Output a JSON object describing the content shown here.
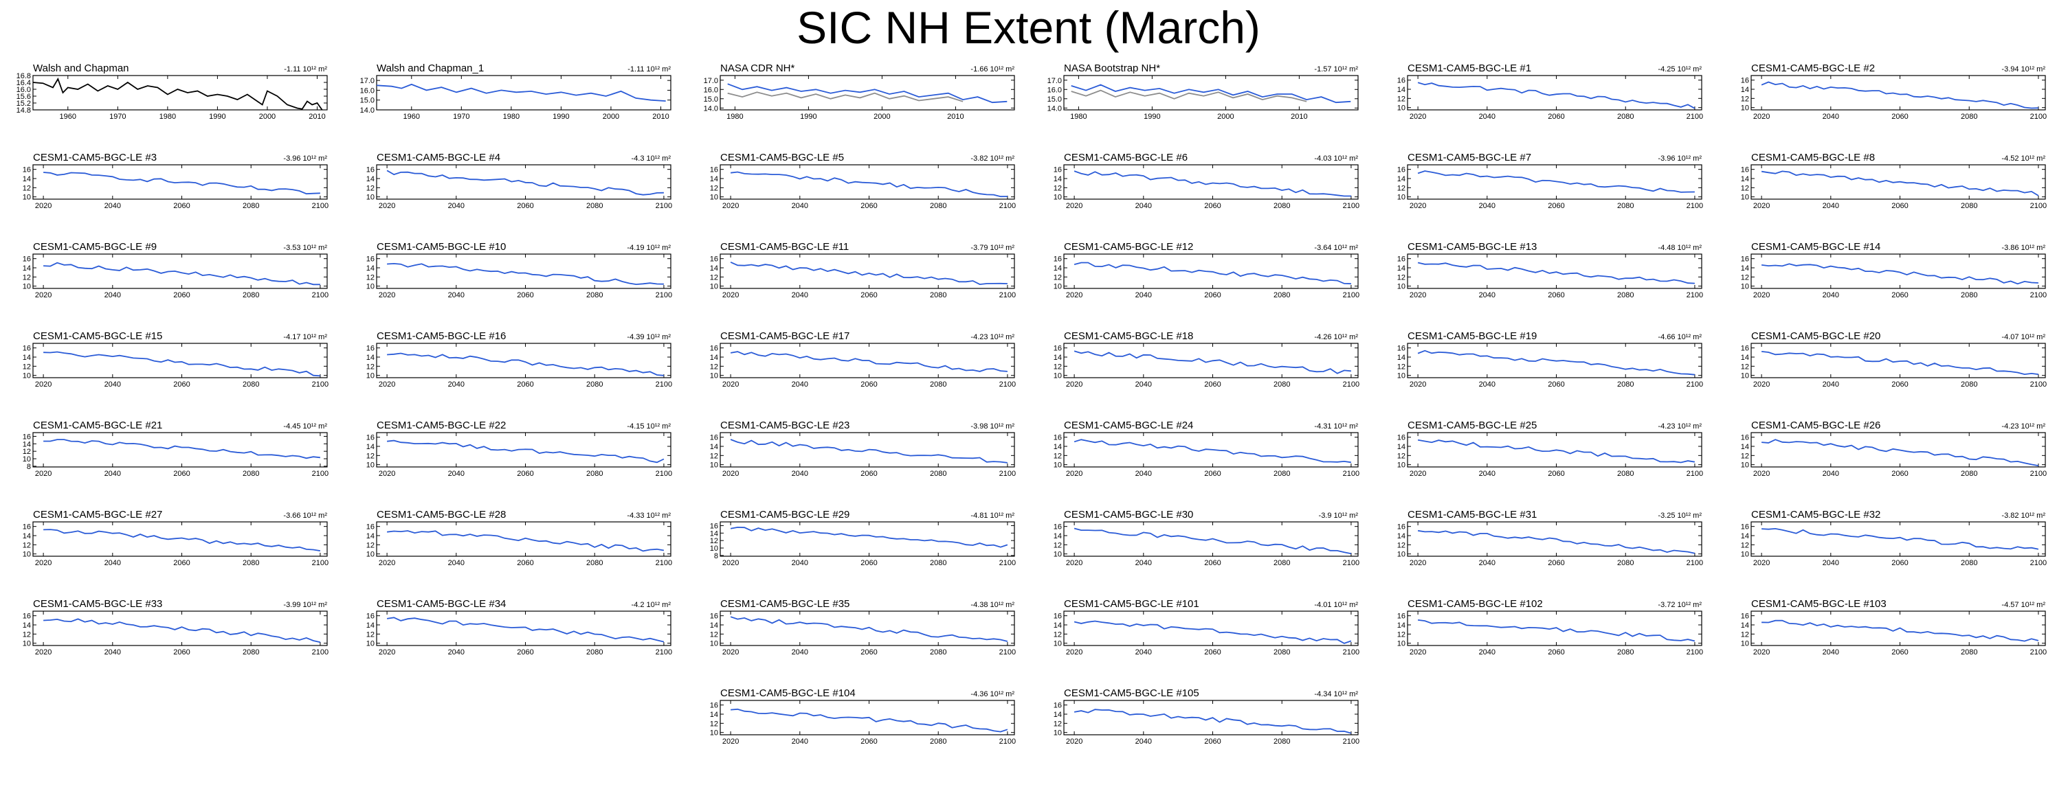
{
  "title": "SIC NH Extent (March)",
  "colors": {
    "observed": "#000000",
    "model": "#2a5bd7",
    "overlay": "#8c8c8c"
  },
  "chart_data": [
    {
      "type": "line",
      "title": "Walsh and Chapman",
      "trend": "-1.11",
      "trend_unit": "10¹² m²",
      "xlim": [
        1953,
        2012
      ],
      "ylim": [
        14.8,
        16.8
      ],
      "yticks": [
        "14.8",
        "15.2",
        "15.6",
        "16.0",
        "16.4",
        "16.8"
      ],
      "xticks": [
        "1960",
        "1970",
        "1980",
        "1990",
        "2000",
        "2010"
      ],
      "color": "#000000",
      "series": [
        {
          "x": [
            1953,
            1955,
            1957,
            1958,
            1959,
            1960,
            1962,
            1964,
            1966,
            1968,
            1970,
            1972,
            1974,
            1976,
            1978,
            1980,
            1982,
            1984,
            1986,
            1988,
            1990,
            1992,
            1994,
            1996,
            1998,
            1999,
            2000,
            2002,
            2004,
            2006,
            2007,
            2008,
            2009,
            2010,
            2011
          ],
          "y": [
            16.4,
            16.35,
            16.1,
            16.6,
            15.8,
            16.1,
            16.0,
            16.3,
            15.9,
            16.2,
            16.0,
            16.4,
            16.0,
            16.2,
            16.1,
            15.7,
            16.0,
            15.8,
            15.9,
            15.6,
            15.7,
            15.6,
            15.4,
            15.7,
            15.3,
            15.1,
            15.9,
            15.6,
            15.1,
            14.9,
            14.85,
            15.3,
            15.1,
            15.2,
            14.8
          ]
        }
      ]
    },
    {
      "type": "line",
      "title": "Walsh and Chapman_1",
      "trend": "-1.11",
      "trend_unit": "10¹² m²",
      "xlim": [
        1953,
        2012
      ],
      "ylim": [
        14,
        17.5
      ],
      "yticks": [
        "14.0",
        "15.0",
        "16.0",
        "17.0"
      ],
      "xticks": [
        "1960",
        "1970",
        "1980",
        "1990",
        "2000",
        "2010"
      ],
      "color": "#2a5bd7",
      "series": [
        {
          "x": [
            1953,
            1956,
            1958,
            1960,
            1963,
            1966,
            1969,
            1972,
            1975,
            1978,
            1981,
            1984,
            1987,
            1990,
            1993,
            1996,
            1999,
            2002,
            2005,
            2008,
            2011
          ],
          "y": [
            16.5,
            16.4,
            16.2,
            16.6,
            16.0,
            16.3,
            15.8,
            16.2,
            15.7,
            16.0,
            15.8,
            15.9,
            15.6,
            15.8,
            15.5,
            15.7,
            15.4,
            15.9,
            15.2,
            15.0,
            14.9
          ]
        }
      ]
    },
    {
      "type": "line",
      "title": "NASA CDR NH*",
      "trend": "-1.66",
      "trend_unit": "10¹² m²",
      "xlim": [
        1978,
        2018
      ],
      "ylim": [
        13.8,
        17.5
      ],
      "yticks": [
        "14.0",
        "15.0",
        "16.0",
        "17.0"
      ],
      "xticks": [
        "1980",
        "1990",
        "2000",
        "2010"
      ],
      "color": "#2a5bd7",
      "series": [
        {
          "x": [
            1979,
            1981,
            1983,
            1985,
            1987,
            1989,
            1991,
            1993,
            1995,
            1997,
            1999,
            2001,
            2003,
            2005,
            2007,
            2009,
            2011,
            2013,
            2015,
            2017
          ],
          "y": [
            16.6,
            16.0,
            16.3,
            15.9,
            16.2,
            15.8,
            16.0,
            15.6,
            15.9,
            15.7,
            16.0,
            15.5,
            15.8,
            15.2,
            15.4,
            15.6,
            14.9,
            15.2,
            14.6,
            14.7
          ]
        },
        {
          "x": [
            1979,
            1981,
            1983,
            1985,
            1987,
            1989,
            1991,
            1993,
            1995,
            1997,
            1999,
            2001,
            2003,
            2005,
            2007,
            2009,
            2011
          ],
          "y": [
            15.6,
            15.2,
            15.7,
            15.3,
            15.6,
            15.1,
            15.5,
            15.0,
            15.4,
            15.1,
            15.6,
            15.0,
            15.3,
            14.8,
            15.0,
            15.2,
            14.7
          ]
        }
      ]
    },
    {
      "type": "line",
      "title": "NASA Bootstrap NH*",
      "trend": "-1.57",
      "trend_unit": "10¹² m²",
      "xlim": [
        1978,
        2018
      ],
      "ylim": [
        13.8,
        17.5
      ],
      "yticks": [
        "14.0",
        "15.0",
        "16.0",
        "17.0"
      ],
      "xticks": [
        "1980",
        "1990",
        "2000",
        "2010"
      ],
      "color": "#2a5bd7",
      "series": [
        {
          "x": [
            1979,
            1981,
            1983,
            1985,
            1987,
            1989,
            1991,
            1993,
            1995,
            1997,
            1999,
            2001,
            2003,
            2005,
            2007,
            2009,
            2011,
            2013,
            2015,
            2017
          ],
          "y": [
            16.4,
            15.9,
            16.5,
            15.8,
            16.2,
            15.9,
            16.1,
            15.6,
            16.0,
            15.7,
            16.0,
            15.4,
            15.8,
            15.2,
            15.5,
            15.5,
            14.9,
            15.2,
            14.6,
            14.7
          ]
        },
        {
          "x": [
            1979,
            1981,
            1983,
            1985,
            1987,
            1989,
            1991,
            1993,
            1995,
            1997,
            1999,
            2001,
            2003,
            2005,
            2007,
            2009,
            2011
          ],
          "y": [
            15.8,
            15.3,
            15.9,
            15.2,
            15.7,
            15.3,
            15.6,
            15.0,
            15.6,
            15.3,
            15.7,
            15.1,
            15.5,
            14.9,
            15.3,
            15.1,
            14.7
          ]
        }
      ]
    }
  ],
  "ensemble": {
    "xlim": [
      2017,
      2102
    ],
    "xticks": [
      "2020",
      "2040",
      "2060",
      "2080",
      "2100"
    ],
    "yticks_default": [
      "10",
      "12",
      "14",
      "16"
    ],
    "yticks_wide": [
      "8",
      "10",
      "12",
      "14",
      "16"
    ],
    "trend_unit": "10¹² m²",
    "members": [
      {
        "title": "CESM1-CAM5-BGC-LE #1",
        "trend": "-4.25"
      },
      {
        "title": "CESM1-CAM5-BGC-LE #2",
        "trend": "-3.94"
      },
      {
        "title": "CESM1-CAM5-BGC-LE #3",
        "trend": "-3.96"
      },
      {
        "title": "CESM1-CAM5-BGC-LE #4",
        "trend": "-4.3"
      },
      {
        "title": "CESM1-CAM5-BGC-LE #5",
        "trend": "-3.82"
      },
      {
        "title": "CESM1-CAM5-BGC-LE #6",
        "trend": "-4.03"
      },
      {
        "title": "CESM1-CAM5-BGC-LE #7",
        "trend": "-3.96"
      },
      {
        "title": "CESM1-CAM5-BGC-LE #8",
        "trend": "-4.52"
      },
      {
        "title": "CESM1-CAM5-BGC-LE #9",
        "trend": "-3.53"
      },
      {
        "title": "CESM1-CAM5-BGC-LE #10",
        "trend": "-4.19"
      },
      {
        "title": "CESM1-CAM5-BGC-LE #11",
        "trend": "-3.79"
      },
      {
        "title": "CESM1-CAM5-BGC-LE #12",
        "trend": "-3.64"
      },
      {
        "title": "CESM1-CAM5-BGC-LE #13",
        "trend": "-4.48"
      },
      {
        "title": "CESM1-CAM5-BGC-LE #14",
        "trend": "-3.86"
      },
      {
        "title": "CESM1-CAM5-BGC-LE #15",
        "trend": "-4.17"
      },
      {
        "title": "CESM1-CAM5-BGC-LE #16",
        "trend": "-4.39"
      },
      {
        "title": "CESM1-CAM5-BGC-LE #17",
        "trend": "-4.23"
      },
      {
        "title": "CESM1-CAM5-BGC-LE #18",
        "trend": "-4.26"
      },
      {
        "title": "CESM1-CAM5-BGC-LE #19",
        "trend": "-4.66"
      },
      {
        "title": "CESM1-CAM5-BGC-LE #20",
        "trend": "-4.07"
      },
      {
        "title": "CESM1-CAM5-BGC-LE #21",
        "trend": "-4.45",
        "wide": true
      },
      {
        "title": "CESM1-CAM5-BGC-LE #22",
        "trend": "-4.15"
      },
      {
        "title": "CESM1-CAM5-BGC-LE #23",
        "trend": "-3.98"
      },
      {
        "title": "CESM1-CAM5-BGC-LE #24",
        "trend": "-4.31"
      },
      {
        "title": "CESM1-CAM5-BGC-LE #25",
        "trend": "-4.23"
      },
      {
        "title": "CESM1-CAM5-BGC-LE #26",
        "trend": "-4.23"
      },
      {
        "title": "CESM1-CAM5-BGC-LE #27",
        "trend": "-3.66"
      },
      {
        "title": "CESM1-CAM5-BGC-LE #28",
        "trend": "-4.33"
      },
      {
        "title": "CESM1-CAM5-BGC-LE #29",
        "trend": "-4.81",
        "wide": true
      },
      {
        "title": "CESM1-CAM5-BGC-LE #30",
        "trend": "-3.9"
      },
      {
        "title": "CESM1-CAM5-BGC-LE #31",
        "trend": "-3.25"
      },
      {
        "title": "CESM1-CAM5-BGC-LE #32",
        "trend": "-3.82"
      },
      {
        "title": "CESM1-CAM5-BGC-LE #33",
        "trend": "-3.99"
      },
      {
        "title": "CESM1-CAM5-BGC-LE #34",
        "trend": "-4.2"
      },
      {
        "title": "CESM1-CAM5-BGC-LE #35",
        "trend": "-4.38"
      },
      {
        "title": "CESM1-CAM5-BGC-LE #101",
        "trend": "-4.01"
      },
      {
        "title": "CESM1-CAM5-BGC-LE #102",
        "trend": "-3.72"
      },
      {
        "title": "CESM1-CAM5-BGC-LE #103",
        "trend": "-4.57"
      },
      {
        "title": "CESM1-CAM5-BGC-LE #104",
        "trend": "-4.36"
      },
      {
        "title": "CESM1-CAM5-BGC-LE #105",
        "trend": "-4.34"
      }
    ]
  }
}
